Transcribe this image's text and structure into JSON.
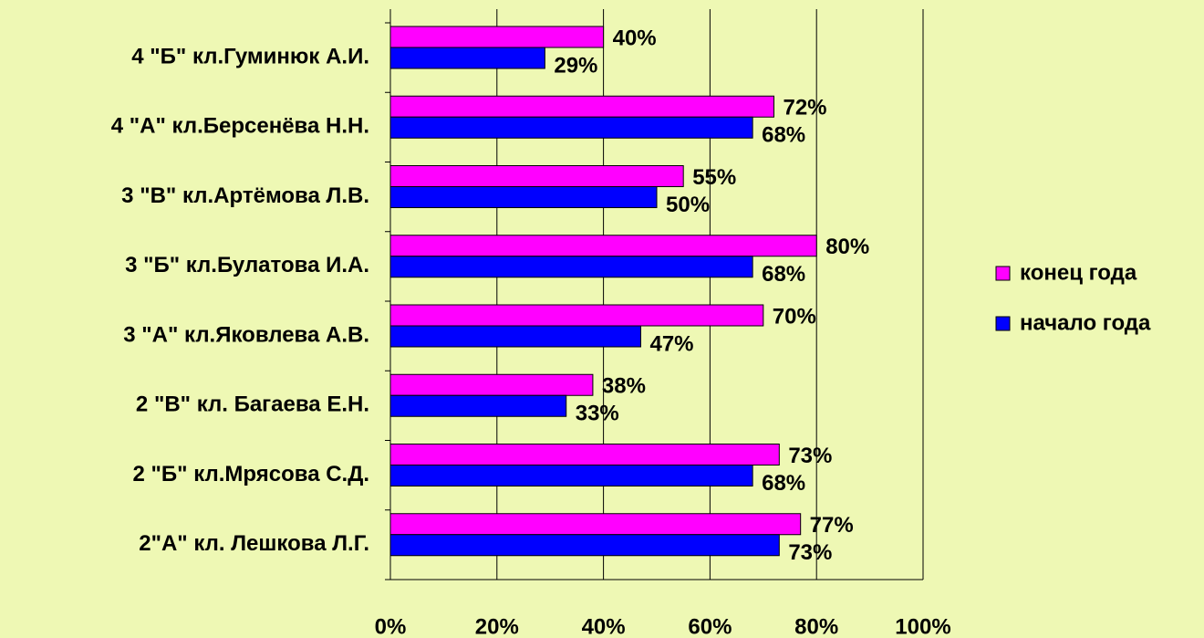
{
  "chart_data": {
    "type": "barh",
    "categories": [
      "4 \"Б\" кл.Гуминюк А.И.",
      "4 \"А\" кл.Берсенёва Н.Н.",
      "3 \"В\" кл.Артёмова Л.В.",
      "3 \"Б\" кл.Булатова И.А.",
      "3 \"А\" кл.Яковлева А.В.",
      "2 \"В\" кл. Багаева Е.Н.",
      "2 \"Б\" кл.Мрясова С.Д.",
      "2\"А\" кл. Лешкова Л.Г."
    ],
    "series": [
      {
        "name": "конец года",
        "color": "#ff00ff",
        "values": [
          40,
          72,
          55,
          80,
          70,
          38,
          73,
          77
        ],
        "value_labels": [
          "40%",
          "72%",
          "55%",
          "80%",
          "70%",
          "38%",
          "73%",
          "77%"
        ]
      },
      {
        "name": "начало года",
        "color": "#0000ff",
        "values": [
          29,
          68,
          50,
          68,
          47,
          33,
          68,
          73
        ],
        "value_labels": [
          "29%",
          "68%",
          "50%",
          "68%",
          "47%",
          "33%",
          "68%",
          "73%"
        ]
      }
    ],
    "xlim": [
      0,
      100
    ],
    "xticks": [
      {
        "value": 0,
        "label": "0%"
      },
      {
        "value": 20,
        "label": "20%"
      },
      {
        "value": 40,
        "label": "40%"
      },
      {
        "value": 60,
        "label": "60%"
      },
      {
        "value": 80,
        "label": "80%"
      },
      {
        "value": 100,
        "label": "100%"
      }
    ],
    "grid": true,
    "legend": "right"
  }
}
